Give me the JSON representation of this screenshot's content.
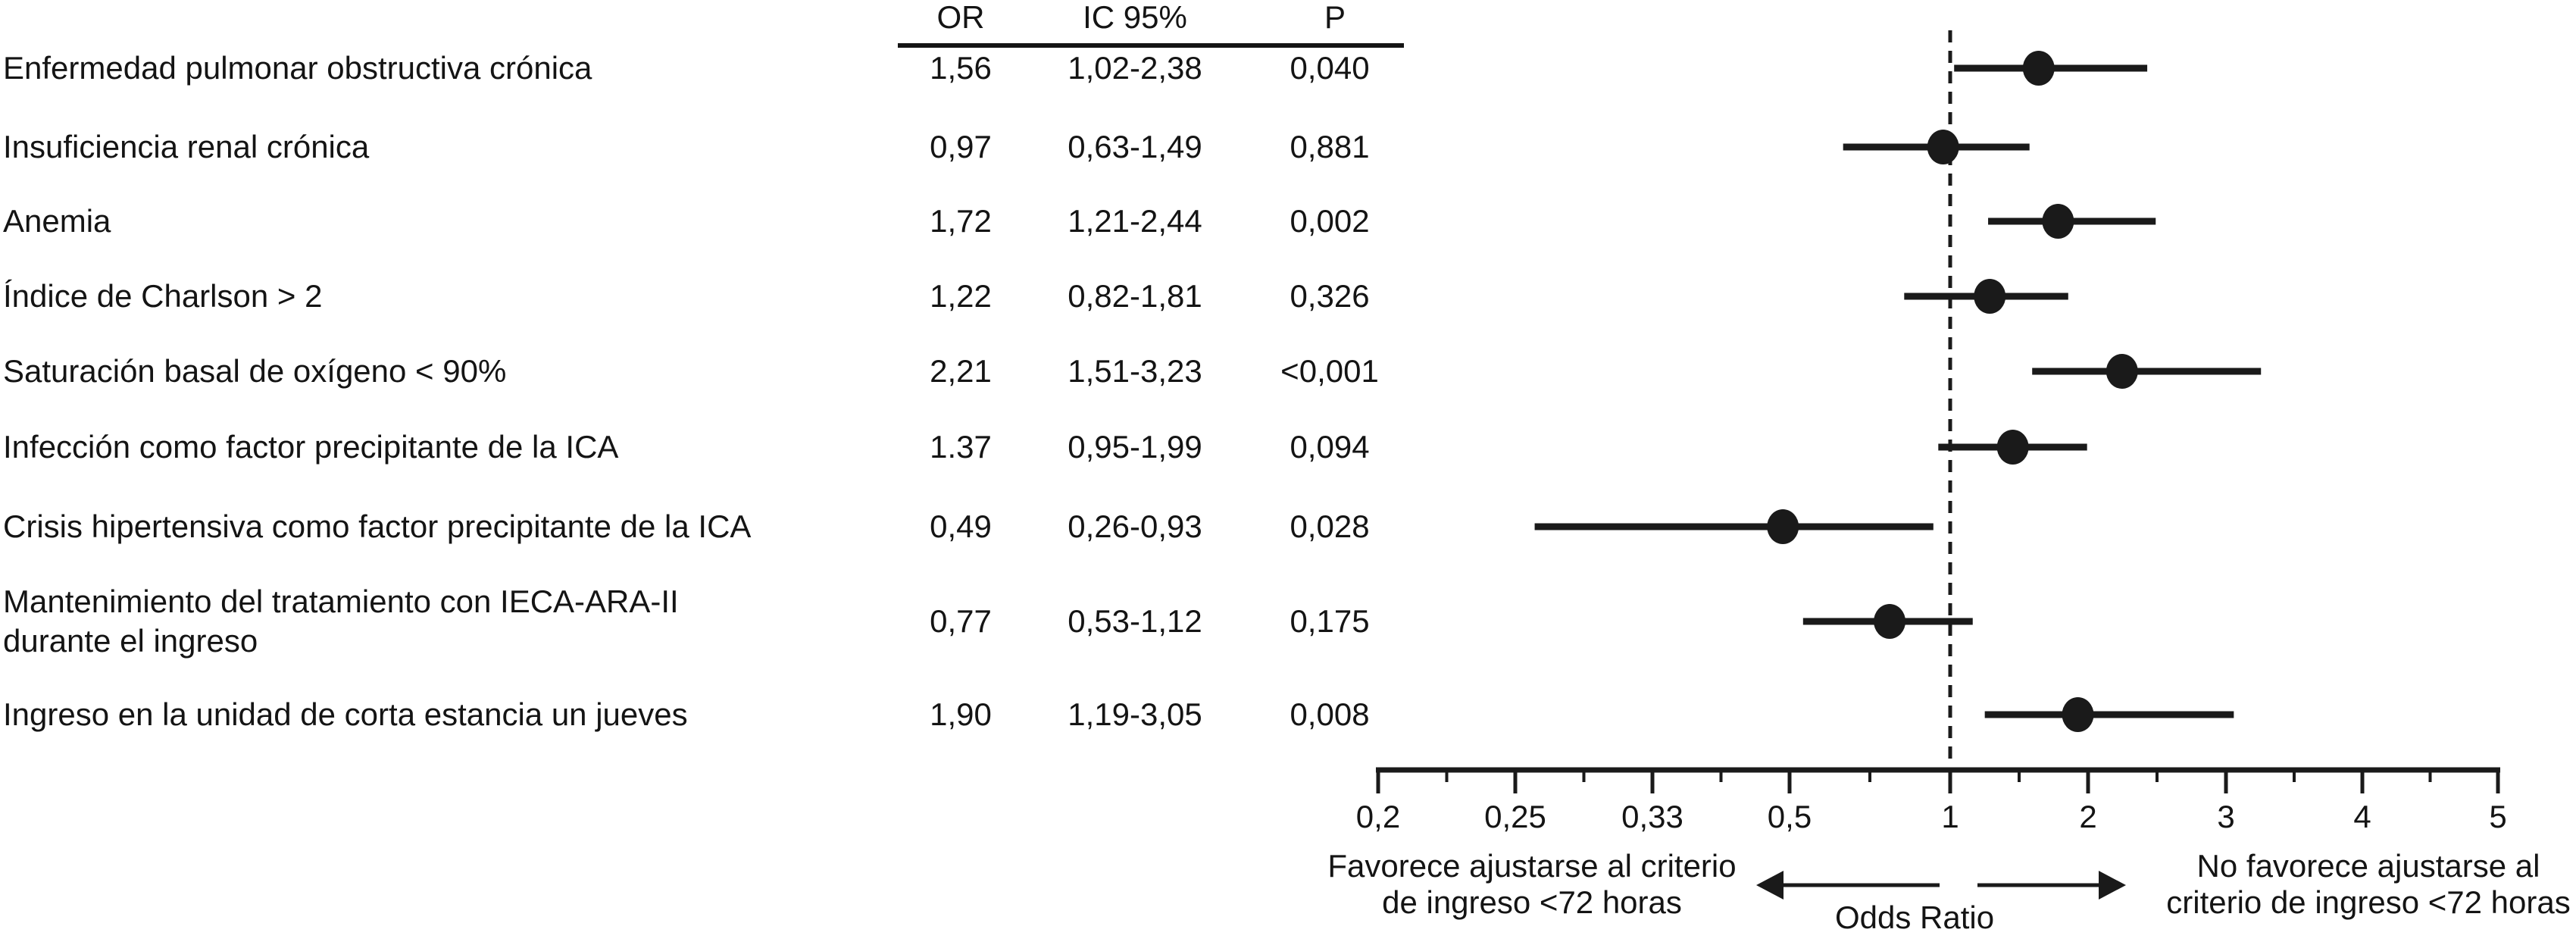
{
  "ink": "#1a1a1a",
  "table_header": {
    "or": "OR",
    "ci": "IC 95%",
    "p": "P"
  },
  "footer": {
    "left_line1": "Favorece ajustarse al criterio",
    "left_line2": "de ingreso <72 horas",
    "right_line1": "No favorece ajustarse al",
    "right_line2": "criterio de ingreso <72 horas",
    "axis_title": "Odds Ratio"
  },
  "chart_data": {
    "type": "scatter",
    "subtype": "forest-plot",
    "title": "",
    "xlabel": "Odds Ratio",
    "orientation": "horizontal",
    "reference_value": 1,
    "x_axis": {
      "scale": "log-like (reciprocal symmetric)",
      "tick_values": [
        0.2,
        0.25,
        0.33,
        0.5,
        1,
        2,
        3,
        4,
        5
      ],
      "tick_labels": [
        "0,2",
        "0,25",
        "0,33",
        "0,5",
        "1",
        "2",
        "3",
        "4",
        "5"
      ],
      "minor_ticks": "midpoints between major ticks"
    },
    "direction_notes": {
      "left_of_1": "Favorece ajustarse al criterio de ingreso <72 horas",
      "right_of_1": "No favorece ajustarse al criterio de ingreso <72 horas"
    },
    "rows": [
      {
        "label": "Enfermedad pulmonar obstructiva crónica",
        "label2": "",
        "or_text": "1,56",
        "ci_text": "1,02-2,38",
        "p_text": "0,040",
        "or": 1.56,
        "ci_low": 1.02,
        "ci_high": 2.38
      },
      {
        "label": "Insuficiencia renal crónica",
        "label2": "",
        "or_text": "0,97",
        "ci_text": "0,63-1,49",
        "p_text": "0,881",
        "or": 0.97,
        "ci_low": 0.63,
        "ci_high": 1.49
      },
      {
        "label": "Anemia",
        "label2": "",
        "or_text": "1,72",
        "ci_text": "1,21-2,44",
        "p_text": "0,002",
        "or": 1.72,
        "ci_low": 1.21,
        "ci_high": 2.44
      },
      {
        "label": "Índice de Charlson > 2",
        "label2": "",
        "or_text": "1,22",
        "ci_text": "0,82-1,81",
        "p_text": "0,326",
        "or": 1.22,
        "ci_low": 0.82,
        "ci_high": 1.81
      },
      {
        "label": "Saturación basal de oxígeno < 90%",
        "label2": "",
        "or_text": "2,21",
        "ci_text": "1,51-3,23",
        "p_text": "<0,001",
        "or": 2.21,
        "ci_low": 1.51,
        "ci_high": 3.23
      },
      {
        "label": "Infección como factor precipitante de la ICA",
        "label2": "",
        "or_text": "1.37",
        "ci_text": "0,95-1,99",
        "p_text": "0,094",
        "or": 1.37,
        "ci_low": 0.95,
        "ci_high": 1.99
      },
      {
        "label": "Crisis hipertensiva como factor precipitante de la ICA",
        "label2": "",
        "or_text": "0,49",
        "ci_text": "0,26-0,93",
        "p_text": "0,028",
        "or": 0.49,
        "ci_low": 0.26,
        "ci_high": 0.93
      },
      {
        "label": "Mantenimiento del tratamiento con IECA-ARA-II",
        "label2": "durante el ingreso",
        "or_text": "0,77",
        "ci_text": "0,53-1,12",
        "p_text": "0,175",
        "or": 0.77,
        "ci_low": 0.53,
        "ci_high": 1.12
      },
      {
        "label": "Ingreso en la unidad de corta estancia un jueves",
        "label2": "",
        "or_text": "1,90",
        "ci_text": "1,19-3,05",
        "p_text": "0,008",
        "or": 1.9,
        "ci_low": 1.19,
        "ci_high": 3.05
      }
    ]
  }
}
